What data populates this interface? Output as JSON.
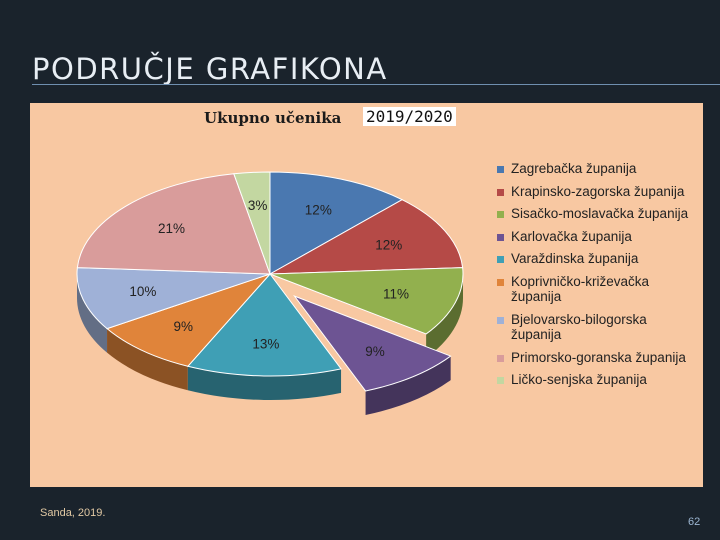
{
  "slide": {
    "title": "PODRUČJE GRAFIKONA",
    "author": "Sanda, 2019.",
    "page_number": "62"
  },
  "colors": {
    "background": "#1a232c",
    "panel": "#f8c8a2"
  },
  "chart_data": {
    "type": "pie",
    "title": "Ukupno učenika",
    "year_label": "2019/2020",
    "legend_position": "right",
    "three_d": true,
    "slices": [
      {
        "name": "Zagrebačka županija",
        "value": 12,
        "label": "12%",
        "color": "#4a78b0"
      },
      {
        "name": "Krapinsko-zagorska županija",
        "value": 12,
        "label": "12%",
        "color": "#b54a47"
      },
      {
        "name": "Sisačko-moslavačka županija",
        "value": 11,
        "label": "11%",
        "color": "#92b04e"
      },
      {
        "name": "Karlovačka županija",
        "value": 9,
        "label": "9%",
        "color": "#6d5493",
        "exploded": true
      },
      {
        "name": "Varaždinska županija",
        "value": 13,
        "label": "13%",
        "color": "#3f9fb5"
      },
      {
        "name": "Koprivničko-križevačka županija",
        "value": 9,
        "label": "9%",
        "color": "#e0843a"
      },
      {
        "name": "Bjelovarsko-bilogorska županija",
        "value": 10,
        "label": "10%",
        "color": "#9fb1d7"
      },
      {
        "name": "Primorsko-goranska županija",
        "value": 21,
        "label": "21%",
        "color": "#d99c9b"
      },
      {
        "name": "Ličko-senjska županija",
        "value": 3,
        "label": "3%",
        "color": "#c3d7a1"
      }
    ]
  }
}
